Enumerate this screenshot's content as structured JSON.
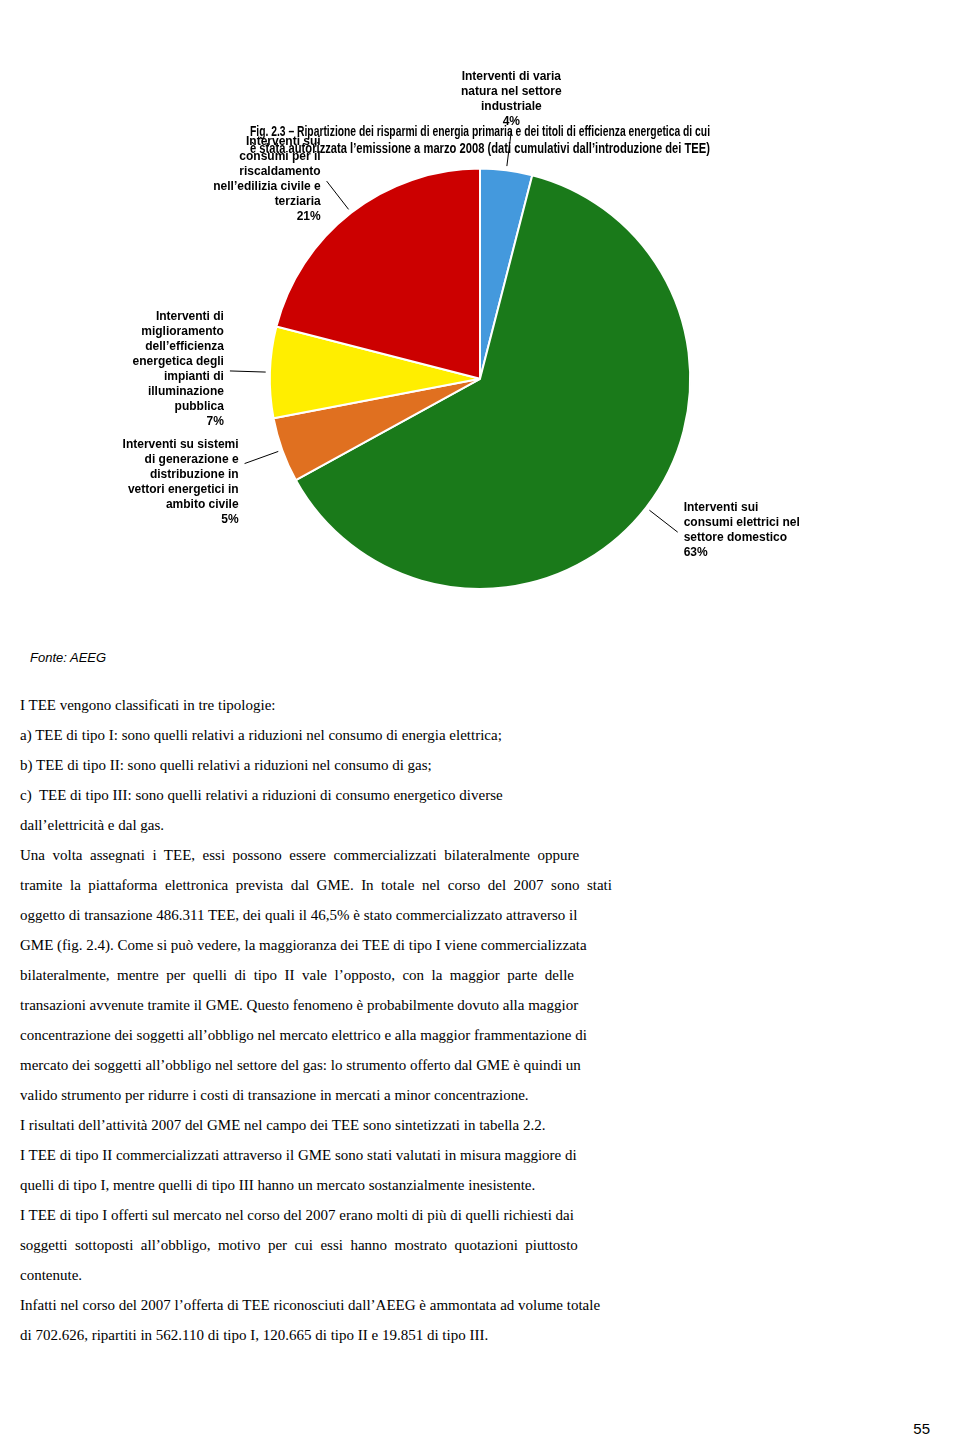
{
  "chart_data": {
    "type": "pie",
    "title": [
      "Fig. 2.3 – Ripartizione dei risparmi di energia primaria e dei titoli di efficienza energetica di cui",
      "è stata autorizzata l’emissione a marzo 2008 (dati cumulativi dall’introduzione dei TEE)"
    ],
    "categories": [
      "Interventi di varia\nnatura nel settore\nindustriale",
      "Interventi sui\nconsumi elettrici nel\nsettore domestico",
      "Interventi su sistemi\ndi generazione e\ndistribuzione in\nvettori energetici in\nambito civile",
      "Interventi di\nmiglioramento\ndell’efficienza\nenergetica degli\nimpianti di\nilluminazione\npubblica",
      "Interventi sui\nconsumi per il\nriscaldamento\nnell’edilizia civile e\nterziaria"
    ],
    "values": [
      4,
      63,
      5,
      7,
      21
    ],
    "value_labels": [
      "4%",
      "63%",
      "5%",
      "7%",
      "21%"
    ],
    "colors": [
      "#4499dd",
      "#1a7a1a",
      "#e07020",
      "#ffee00",
      "#cc0000"
    ],
    "data_labels": true,
    "source": "Fonte: AEEG"
  },
  "body_text": [
    "I TEE vengono classificati in tre tipologie:",
    "a) TEE di tipo I: sono quelli relativi a riduzioni nel consumo di energia elettrica;",
    "b) TEE di tipo II: sono quelli relativi a riduzioni nel consumo di gas;",
    "c)  TEE di tipo III: sono quelli relativi a riduzioni di consumo energetico diverse",
    "dall’elettricità e dal gas.",
    "Una  volta  assegnati  i  TEE,  essi  possono  essere  commercializzati  bilateralmente  oppure",
    "tramite  la  piattaforma  elettronica  prevista  dal  GME.  In  totale  nel  corso  del  2007  sono  stati",
    "oggetto di transazione 486.311 TEE, dei quali il 46,5% è stato commercializzato attraverso il",
    "GME (fig. 2.4). Come si può vedere, la maggioranza dei TEE di tipo I viene commercializzata",
    "bilateralmente,  mentre  per  quelli  di  tipo  II  vale  l’opposto,  con  la  maggior  parte  delle",
    "transazioni avvenute tramite il GME. Questo fenomeno è probabilmente dovuto alla maggior",
    "concentrazione dei soggetti all’obbligo nel mercato elettrico e alla maggior frammentazione di",
    "mercato dei soggetti all’obbligo nel settore del gas: lo strumento offerto dal GME è quindi un",
    "valido strumento per ridurre i costi di transazione in mercati a minor concentrazione.",
    "I risultati dell’attività 2007 del GME nel campo dei TEE sono sintetizzati in tabella 2.2.",
    "I TEE di tipo II commercializzati attraverso il GME sono stati valutati in misura maggiore di",
    "quelli di tipo I, mentre quelli di tipo III hanno un mercato sostanzialmente inesistente.",
    "I TEE di tipo I offerti sul mercato nel corso del 2007 erano molti di più di quelli richiesti dai",
    "soggetti  sottoposti  all’obbligo,  motivo  per  cui  essi  hanno  mostrato  quotazioni  piuttosto",
    "contenute.",
    "Infatti nel corso del 2007 l’offerta di TEE riconosciuti dall’AEEG è ammontata ad volume totale",
    "di 702.626, ripartiti in 562.110 di tipo I, 120.665 di tipo II e 19.851 di tipo III."
  ],
  "page_number": "55"
}
